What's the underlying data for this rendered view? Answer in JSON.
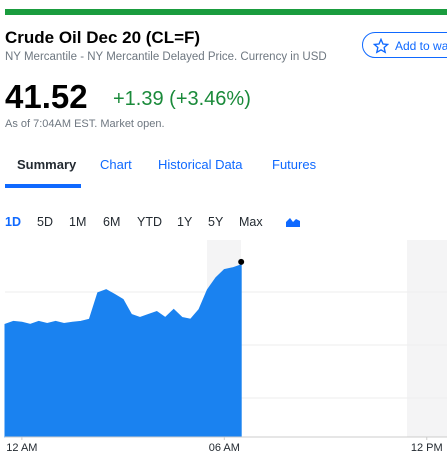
{
  "header": {
    "title": "Crude Oil Dec 20 (CL=F)",
    "subtitle": "NY Mercantile - NY Mercantile Delayed Price. Currency in USD",
    "watchlist_button": "Add to watchlist"
  },
  "quote": {
    "price": "41.52",
    "change": "+1.39 (+3.46%)",
    "as_of": "As of 7:04AM EST. Market open."
  },
  "tabs": [
    "Summary",
    "Chart",
    "Historical Data",
    "Futures"
  ],
  "ranges": [
    "1D",
    "5D",
    "1M",
    "6M",
    "YTD",
    "1Y",
    "5Y",
    "Max"
  ],
  "chart_data": {
    "type": "area",
    "color": "#1a82f0",
    "x": [
      -0.5,
      -0.25,
      0,
      0.25,
      0.5,
      0.75,
      1,
      1.25,
      1.5,
      1.75,
      2,
      2.25,
      2.5,
      2.75,
      3,
      3.25,
      3.5,
      3.75,
      4,
      4.25,
      4.5,
      4.75,
      5,
      5.25,
      5.5,
      5.75,
      6,
      6.25,
      6.5
    ],
    "values": [
      40.13,
      40.2,
      40.18,
      40.13,
      40.2,
      40.15,
      40.2,
      40.15,
      40.18,
      40.2,
      40.25,
      40.87,
      40.94,
      40.83,
      40.71,
      40.36,
      40.29,
      40.36,
      40.43,
      40.29,
      40.48,
      40.29,
      40.25,
      40.48,
      40.94,
      41.22,
      41.41,
      41.45,
      41.52
    ],
    "xlim": [
      -0.5,
      12.6
    ],
    "ylim": [
      37.5,
      42.1
    ],
    "xticks": [
      {
        "value": 0,
        "label": "12 AM"
      },
      {
        "value": 6,
        "label": "06 AM"
      },
      {
        "value": 12,
        "label": "12 PM"
      }
    ]
  }
}
